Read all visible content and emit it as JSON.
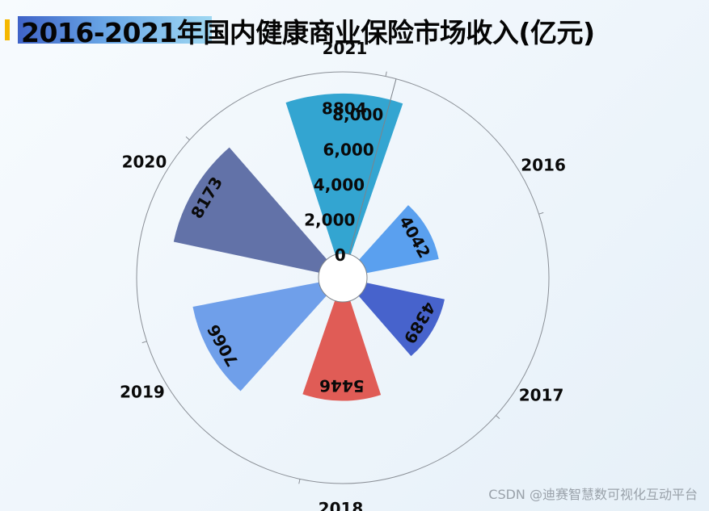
{
  "header": {
    "title": "2016-2021年国内健康商业保险市场收入(亿元)"
  },
  "watermark": "CSDN @迪赛智慧数可视化互动平台",
  "chart_data": {
    "type": "polar-bar",
    "title": "2016-2021年国内健康商业保险市场收入(亿元)",
    "unit": "亿元",
    "categories": [
      "2016",
      "2017",
      "2018",
      "2019",
      "2020",
      "2021"
    ],
    "values": [
      4042,
      4389,
      5446,
      7066,
      8173,
      8804
    ],
    "colors": [
      "#5aa0ef",
      "#4763cc",
      "#e05c56",
      "#6f9fea",
      "#6272a8",
      "#33a5d1"
    ],
    "radial_ticks": [
      "0",
      "2,000",
      "4,000",
      "6,000",
      "8,000"
    ],
    "radial_range": [
      0,
      10000
    ],
    "data_labels": [
      "4042",
      "4389",
      "5446",
      "7066",
      "8173",
      "8804"
    ],
    "grid": false,
    "legend": "none"
  }
}
